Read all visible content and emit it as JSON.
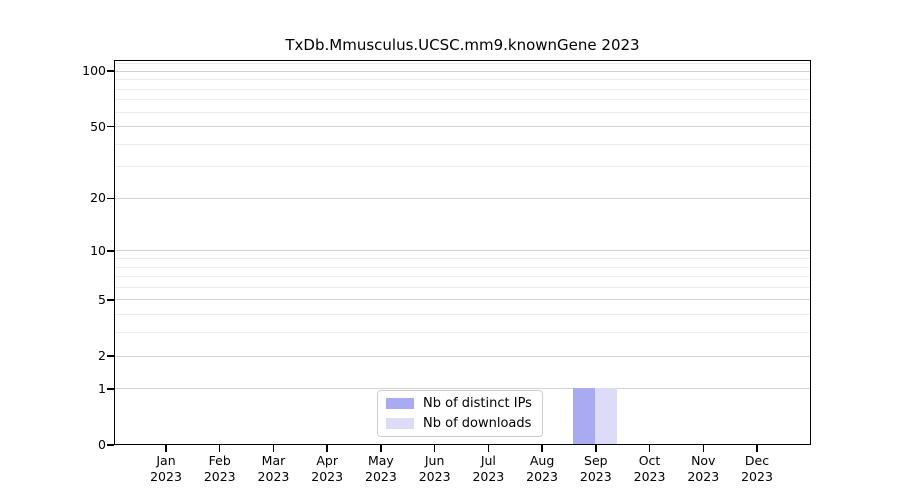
{
  "chart_data": {
    "type": "bar",
    "title": "TxDb.Mmusculus.UCSC.mm9.knownGene 2023",
    "categories": [
      "Jan 2023",
      "Feb 2023",
      "Mar 2023",
      "Apr 2023",
      "May 2023",
      "Jun 2023",
      "Jul 2023",
      "Aug 2023",
      "Sep 2023",
      "Oct 2023",
      "Nov 2023",
      "Dec 2023"
    ],
    "series": [
      {
        "name": "Nb of distinct IPs",
        "color": "#aaaaf3",
        "values": [
          0,
          0,
          0,
          0,
          0,
          0,
          0,
          0,
          1,
          0,
          0,
          0
        ]
      },
      {
        "name": "Nb of downloads",
        "color": "#dcdcf8",
        "values": [
          0,
          0,
          0,
          0,
          0,
          0,
          0,
          0,
          1,
          0,
          0,
          0
        ]
      }
    ],
    "xlabel": "",
    "ylabel": "",
    "yscale": "log1p",
    "ylim": [
      0,
      115
    ],
    "y_major_ticks": [
      0,
      1,
      2,
      5,
      10,
      20,
      50,
      100
    ],
    "y_minor_gridlines": [
      3,
      4,
      6,
      7,
      8,
      9,
      30,
      40,
      60,
      70,
      80,
      90,
      110
    ],
    "grid": "horizontal",
    "legend_position": "inside-bottom-center"
  },
  "colors": {
    "grid_major": "#d2d2d2",
    "grid_minor": "#ebebeb",
    "axis": "#000000",
    "legend_border": "#cccccc",
    "background": "#ffffff"
  }
}
